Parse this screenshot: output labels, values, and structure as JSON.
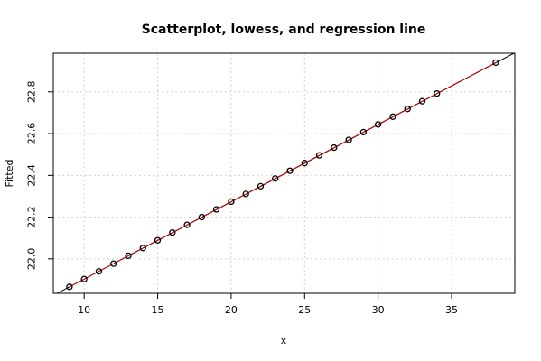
{
  "chart_data": {
    "type": "scatter",
    "title": "Scatterplot, lowess, and regression line",
    "xlabel": "x",
    "ylabel": "Fitted",
    "xlim": [
      7.9,
      39.3
    ],
    "ylim": [
      21.835,
      22.985
    ],
    "x_ticks": [
      10,
      15,
      20,
      25,
      30,
      35
    ],
    "y_ticks": [
      22.0,
      22.2,
      22.4,
      22.6,
      22.8
    ],
    "y_tick_labels": [
      "22.0",
      "22.2",
      "22.4",
      "22.6",
      "22.8"
    ],
    "grid": true,
    "points": [
      {
        "x": 9,
        "y": 21.866
      },
      {
        "x": 10,
        "y": 21.903
      },
      {
        "x": 11,
        "y": 21.94
      },
      {
        "x": 12,
        "y": 21.977
      },
      {
        "x": 13,
        "y": 22.015
      },
      {
        "x": 14,
        "y": 22.052
      },
      {
        "x": 15,
        "y": 22.089
      },
      {
        "x": 16,
        "y": 22.126
      },
      {
        "x": 17,
        "y": 22.163
      },
      {
        "x": 18,
        "y": 22.2
      },
      {
        "x": 19,
        "y": 22.237
      },
      {
        "x": 20,
        "y": 22.274
      },
      {
        "x": 21,
        "y": 22.311
      },
      {
        "x": 22,
        "y": 22.348
      },
      {
        "x": 23,
        "y": 22.385
      },
      {
        "x": 24,
        "y": 22.422
      },
      {
        "x": 25,
        "y": 22.459
      },
      {
        "x": 26,
        "y": 22.496
      },
      {
        "x": 27,
        "y": 22.533
      },
      {
        "x": 28,
        "y": 22.57
      },
      {
        "x": 29,
        "y": 22.607
      },
      {
        "x": 30,
        "y": 22.644
      },
      {
        "x": 31,
        "y": 22.681
      },
      {
        "x": 32,
        "y": 22.718
      },
      {
        "x": 33,
        "y": 22.755
      },
      {
        "x": 34,
        "y": 22.792
      },
      {
        "x": 38,
        "y": 22.94
      }
    ],
    "regression_line": {
      "intercept": 21.533,
      "slope": 0.037,
      "color": "#000000"
    },
    "lowess_color": "#cc0000",
    "point_color": "#000000"
  }
}
